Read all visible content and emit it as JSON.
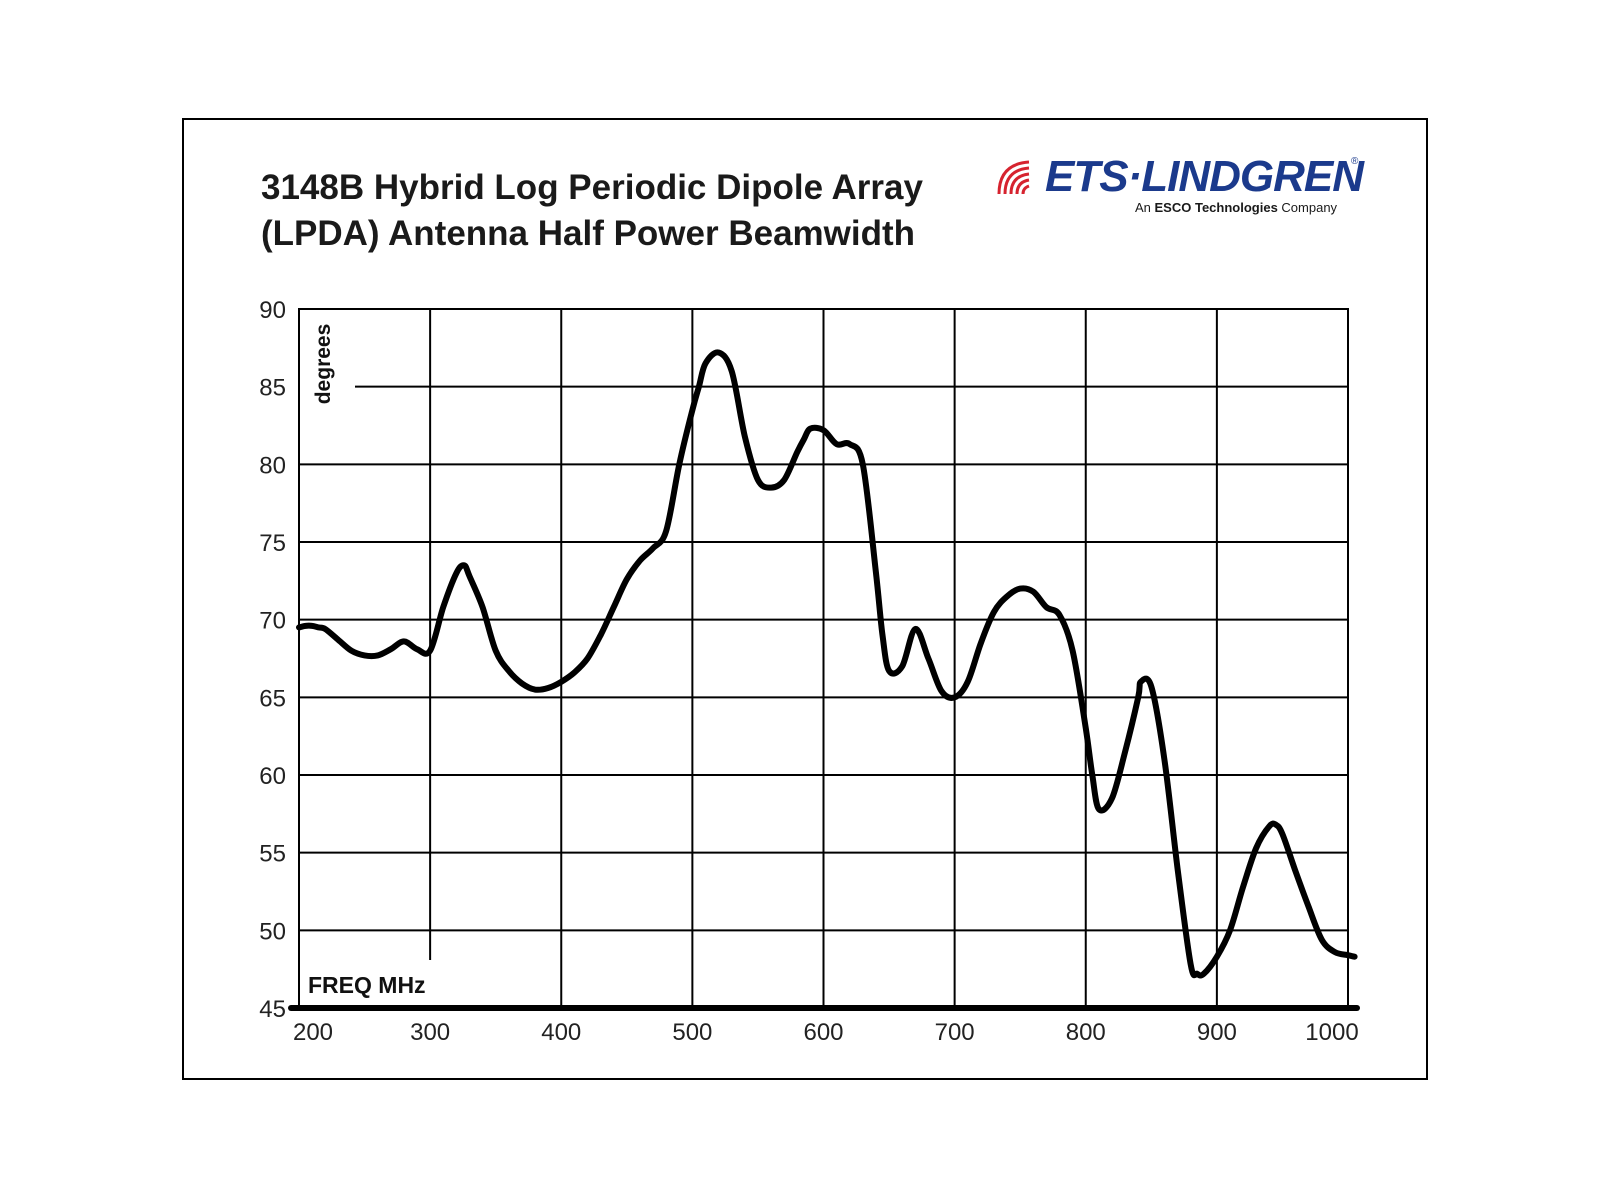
{
  "logo": {
    "name": "ETS·LINDGREN",
    "registered": "®",
    "tagline_prefix": "An ",
    "tagline_bold": "ESCO Technologies",
    "tagline_suffix": " Company",
    "brand_color": "#1b3a8c",
    "accent_color": "#d6232f"
  },
  "chart_data": {
    "type": "line",
    "title_line1": "3148B Hybrid Log Periodic Dipole Array",
    "title_line2": "(LPDA) Antenna Half Power Beamwidth",
    "xlabel": "FREQ MHz",
    "ylabel": "degrees",
    "xlim": [
      200,
      1000
    ],
    "ylim": [
      45,
      90
    ],
    "x_ticks": [
      200,
      300,
      400,
      500,
      600,
      700,
      800,
      900,
      1000
    ],
    "y_ticks": [
      45,
      50,
      55,
      60,
      65,
      70,
      75,
      80,
      85,
      90
    ],
    "grid": true,
    "line_color": "#000000",
    "series": [
      {
        "x": [
          200,
          205,
          210,
          215,
          220,
          230,
          240,
          250,
          260,
          270,
          280,
          290,
          300,
          310,
          320,
          326,
          330,
          340,
          350,
          360,
          370,
          380,
          390,
          400,
          410,
          420,
          430,
          440,
          450,
          460,
          470,
          480,
          490,
          500,
          505,
          510,
          520,
          530,
          540,
          550,
          560,
          570,
          580,
          585,
          590,
          600,
          610,
          620,
          630,
          640,
          645,
          650,
          660,
          670,
          680,
          690,
          700,
          710,
          720,
          730,
          740,
          750,
          760,
          770,
          780,
          790,
          800,
          805,
          810,
          820,
          830,
          840,
          842,
          850,
          860,
          870,
          880,
          885,
          890,
          900,
          910,
          920,
          930,
          940,
          945,
          950,
          960,
          970,
          980,
          990,
          1000,
          1005
        ],
        "y": [
          69.5,
          69.6,
          69.6,
          69.5,
          69.4,
          68.7,
          68.0,
          67.7,
          67.7,
          68.1,
          68.6,
          68.1,
          68.0,
          70.8,
          73.0,
          73.5,
          72.8,
          70.8,
          68.0,
          66.7,
          65.9,
          65.5,
          65.6,
          66.0,
          66.6,
          67.5,
          69.0,
          70.8,
          72.6,
          73.8,
          74.6,
          75.7,
          80.0,
          83.5,
          85.0,
          86.5,
          87.2,
          86.0,
          81.8,
          79.0,
          78.5,
          79.0,
          80.8,
          81.6,
          82.3,
          82.2,
          81.3,
          81.3,
          80.0,
          73.0,
          69.0,
          66.7,
          67.0,
          69.4,
          67.5,
          65.4,
          65.0,
          66.0,
          68.5,
          70.5,
          71.5,
          72.0,
          71.8,
          70.8,
          70.3,
          68.0,
          63.0,
          60.0,
          57.8,
          58.5,
          61.5,
          65.0,
          66.0,
          65.7,
          61.0,
          54.0,
          47.8,
          47.2,
          47.2,
          48.3,
          50.0,
          52.8,
          55.3,
          56.7,
          56.8,
          56.2,
          53.8,
          51.5,
          49.4,
          48.6,
          48.4,
          48.3
        ]
      }
    ]
  }
}
